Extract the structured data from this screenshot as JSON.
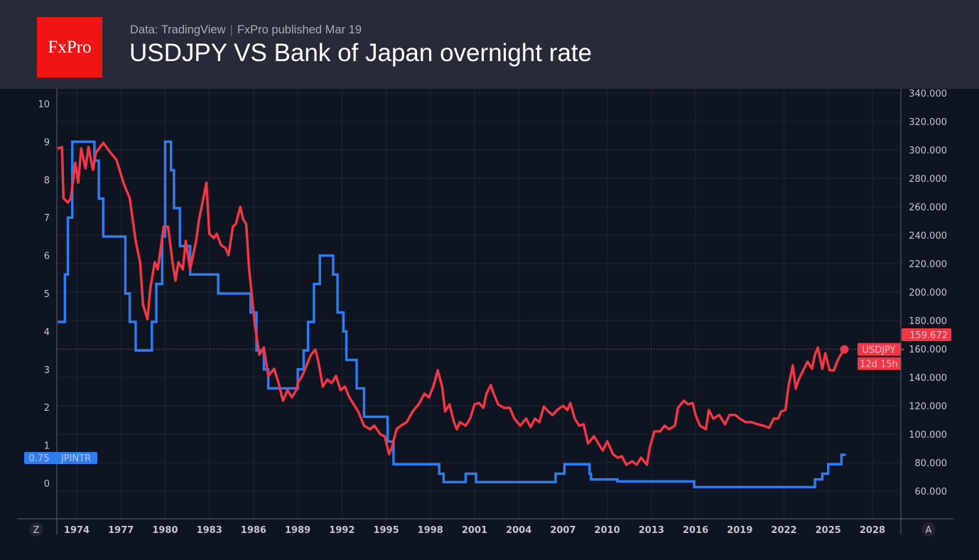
{
  "header": {
    "logo": "FxPro",
    "source": "Data: TradingView",
    "published": "FxPro published Mar 19",
    "title": "USDJPY VS Bank of Japan overnight rate"
  },
  "controls": {
    "left_button": "Z",
    "right_button": "A"
  },
  "chart_data": {
    "type": "line",
    "title": "USDJPY VS Bank of Japan overnight rate",
    "grid": true,
    "x_ticks": [
      "1974",
      "1977",
      "1980",
      "1983",
      "1986",
      "1989",
      "1992",
      "1995",
      "1998",
      "2001",
      "2004",
      "2007",
      "2010",
      "2013",
      "2016",
      "2019",
      "2022",
      "2025",
      "2028"
    ],
    "left_axis": {
      "ticks": [
        0,
        1,
        2,
        3,
        4,
        5,
        6,
        7,
        8,
        9,
        10
      ],
      "range": [
        -0.95,
        10.5
      ]
    },
    "right_axis": {
      "ticks": [
        "60.000",
        "80.000",
        "100.000",
        "120.000",
        "140.000",
        "160.000",
        "180.000",
        "200.000",
        "220.000",
        "240.000",
        "260.000",
        "280.000",
        "300.000",
        "320.000",
        "340.000"
      ],
      "range": [
        40,
        343
      ]
    },
    "series": [
      {
        "name": "USDJPY",
        "axis": "right",
        "color": "#f23645",
        "last_label": "159.672",
        "countdown": "12d 15h",
        "points": [
          [
            1972.7,
            301
          ],
          [
            1973.0,
            302
          ],
          [
            1973.1,
            266
          ],
          [
            1973.4,
            263
          ],
          [
            1973.6,
            266
          ],
          [
            1973.9,
            291
          ],
          [
            1974.1,
            277
          ],
          [
            1974.3,
            301
          ],
          [
            1974.6,
            287
          ],
          [
            1974.8,
            302
          ],
          [
            1975.1,
            286
          ],
          [
            1975.3,
            298
          ],
          [
            1975.8,
            305
          ],
          [
            1976.3,
            298
          ],
          [
            1976.7,
            293
          ],
          [
            1977.2,
            276
          ],
          [
            1977.6,
            266
          ],
          [
            1978.0,
            236
          ],
          [
            1978.3,
            221
          ],
          [
            1978.5,
            191
          ],
          [
            1978.8,
            181
          ],
          [
            1979.0,
            203
          ],
          [
            1979.3,
            221
          ],
          [
            1979.5,
            216
          ],
          [
            1979.9,
            246
          ],
          [
            1980.2,
            246
          ],
          [
            1980.5,
            221
          ],
          [
            1980.7,
            208
          ],
          [
            1980.9,
            221
          ],
          [
            1981.2,
            216
          ],
          [
            1981.4,
            236
          ],
          [
            1981.7,
            216
          ],
          [
            1982.1,
            236
          ],
          [
            1982.3,
            251
          ],
          [
            1982.5,
            261
          ],
          [
            1982.8,
            277
          ],
          [
            1983.0,
            241
          ],
          [
            1983.3,
            238
          ],
          [
            1983.5,
            241
          ],
          [
            1983.8,
            233
          ],
          [
            1984.1,
            231
          ],
          [
            1984.3,
            226
          ],
          [
            1984.6,
            246
          ],
          [
            1984.8,
            248
          ],
          [
            1985.1,
            260
          ],
          [
            1985.3,
            251
          ],
          [
            1985.5,
            248
          ],
          [
            1985.7,
            216
          ],
          [
            1986.1,
            176
          ],
          [
            1986.4,
            156
          ],
          [
            1986.7,
            161
          ],
          [
            1987.0,
            141
          ],
          [
            1987.4,
            146
          ],
          [
            1987.7,
            136
          ],
          [
            1988.0,
            123.5
          ],
          [
            1988.3,
            131
          ],
          [
            1988.6,
            126
          ],
          [
            1988.9,
            131
          ],
          [
            1989.0,
            136
          ],
          [
            1989.3,
            141
          ],
          [
            1989.6,
            148.5
          ],
          [
            1989.9,
            156
          ],
          [
            1990.2,
            159.5
          ],
          [
            1990.4,
            151
          ],
          [
            1990.7,
            133.5
          ],
          [
            1991.0,
            138.5
          ],
          [
            1991.3,
            136
          ],
          [
            1991.6,
            141
          ],
          [
            1991.9,
            131
          ],
          [
            1992.2,
            133.5
          ],
          [
            1992.5,
            126
          ],
          [
            1992.8,
            121
          ],
          [
            1993.1,
            116
          ],
          [
            1993.5,
            106
          ],
          [
            1993.9,
            103.5
          ],
          [
            1994.2,
            106
          ],
          [
            1994.6,
            100
          ],
          [
            1994.9,
            98.5
          ],
          [
            1995.2,
            86
          ],
          [
            1995.4,
            91
          ],
          [
            1995.7,
            103.5
          ],
          [
            1996.0,
            106
          ],
          [
            1996.4,
            108.5
          ],
          [
            1996.8,
            116
          ],
          [
            1997.2,
            121
          ],
          [
            1997.6,
            128.5
          ],
          [
            1997.9,
            126
          ],
          [
            1998.2,
            133.5
          ],
          [
            1998.5,
            145
          ],
          [
            1998.8,
            133.5
          ],
          [
            1999.0,
            116
          ],
          [
            1999.3,
            121
          ],
          [
            1999.6,
            108.5
          ],
          [
            1999.8,
            103.5
          ],
          [
            2000.0,
            108.5
          ],
          [
            2000.4,
            106
          ],
          [
            2000.7,
            111
          ],
          [
            2001.0,
            121
          ],
          [
            2001.3,
            122
          ],
          [
            2001.6,
            118.5
          ],
          [
            2001.8,
            128.5
          ],
          [
            2002.1,
            134.5
          ],
          [
            2002.3,
            128.5
          ],
          [
            2002.6,
            121
          ],
          [
            2003.0,
            118.5
          ],
          [
            2003.4,
            118.5
          ],
          [
            2003.7,
            111
          ],
          [
            2004.1,
            106
          ],
          [
            2004.5,
            111
          ],
          [
            2004.8,
            105
          ],
          [
            2005.1,
            111
          ],
          [
            2005.4,
            108.5
          ],
          [
            2005.7,
            119.5
          ],
          [
            2006.0,
            116
          ],
          [
            2006.3,
            113.5
          ],
          [
            2006.6,
            117
          ],
          [
            2007.0,
            120
          ],
          [
            2007.3,
            117
          ],
          [
            2007.5,
            122
          ],
          [
            2007.8,
            111
          ],
          [
            2008.1,
            106
          ],
          [
            2008.4,
            107
          ],
          [
            2008.7,
            93.5
          ],
          [
            2009.1,
            98.5
          ],
          [
            2009.4,
            93.5
          ],
          [
            2009.7,
            88.5
          ],
          [
            2010.0,
            95
          ],
          [
            2010.4,
            86
          ],
          [
            2010.7,
            83.5
          ],
          [
            2011.0,
            84.5
          ],
          [
            2011.3,
            78.5
          ],
          [
            2011.7,
            81
          ],
          [
            2012.0,
            78.5
          ],
          [
            2012.3,
            83.5
          ],
          [
            2012.7,
            78.5
          ],
          [
            2012.9,
            91
          ],
          [
            2013.2,
            102
          ],
          [
            2013.6,
            102
          ],
          [
            2013.9,
            106
          ],
          [
            2014.2,
            103.5
          ],
          [
            2014.6,
            106
          ],
          [
            2014.8,
            118.5
          ],
          [
            2015.2,
            123.5
          ],
          [
            2015.5,
            121
          ],
          [
            2015.8,
            122
          ],
          [
            2016.0,
            113.5
          ],
          [
            2016.3,
            106
          ],
          [
            2016.7,
            103.5
          ],
          [
            2016.9,
            117
          ],
          [
            2017.2,
            111
          ],
          [
            2017.6,
            113.5
          ],
          [
            2018.0,
            107
          ],
          [
            2018.3,
            113.5
          ],
          [
            2018.7,
            113.5
          ],
          [
            2019.0,
            111
          ],
          [
            2019.4,
            108.5
          ],
          [
            2019.8,
            108.5
          ],
          [
            2020.2,
            107
          ],
          [
            2020.6,
            106
          ],
          [
            2021.0,
            104.5
          ],
          [
            2021.3,
            111
          ],
          [
            2021.6,
            111
          ],
          [
            2021.8,
            116
          ],
          [
            2022.1,
            117
          ],
          [
            2022.3,
            133.5
          ],
          [
            2022.6,
            148.5
          ],
          [
            2022.8,
            132
          ],
          [
            2023.0,
            138.5
          ],
          [
            2023.4,
            147
          ],
          [
            2023.6,
            151
          ],
          [
            2023.9,
            146
          ],
          [
            2024.1,
            156
          ],
          [
            2024.3,
            161
          ],
          [
            2024.6,
            146
          ],
          [
            2024.8,
            157
          ],
          [
            2025.1,
            145
          ],
          [
            2025.4,
            145
          ],
          [
            2025.6,
            151
          ],
          [
            2025.8,
            155
          ],
          [
            2026.1,
            159.672
          ]
        ]
      },
      {
        "name": "JPINTR",
        "axis": "left",
        "color": "#2f7bf0",
        "last_label": "0.75",
        "step": true,
        "points": [
          [
            1972.7,
            4.25
          ],
          [
            1973.2,
            5.5
          ],
          [
            1973.4,
            7.0
          ],
          [
            1973.7,
            9.0
          ],
          [
            1975.2,
            8.5
          ],
          [
            1975.5,
            7.5
          ],
          [
            1975.8,
            6.5
          ],
          [
            1977.3,
            5.0
          ],
          [
            1977.6,
            4.25
          ],
          [
            1978.0,
            3.5
          ],
          [
            1979.1,
            4.25
          ],
          [
            1979.4,
            5.25
          ],
          [
            1979.8,
            6.5
          ],
          [
            1980.0,
            9.0
          ],
          [
            1980.4,
            8.25
          ],
          [
            1980.6,
            7.25
          ],
          [
            1981.0,
            6.25
          ],
          [
            1981.7,
            5.5
          ],
          [
            1983.6,
            5.0
          ],
          [
            1985.8,
            4.5
          ],
          [
            1986.2,
            3.5
          ],
          [
            1986.7,
            3.0
          ],
          [
            1987.0,
            2.5
          ],
          [
            1989.0,
            3.0
          ],
          [
            1989.4,
            3.5
          ],
          [
            1989.7,
            4.25
          ],
          [
            1990.1,
            5.25
          ],
          [
            1990.5,
            6.0
          ],
          [
            1991.4,
            5.5
          ],
          [
            1991.7,
            4.5
          ],
          [
            1992.1,
            4.0
          ],
          [
            1992.3,
            3.25
          ],
          [
            1993.0,
            2.5
          ],
          [
            1993.5,
            1.75
          ],
          [
            1995.1,
            1.1
          ],
          [
            1995.5,
            0.5
          ],
          [
            1998.6,
            0.25
          ],
          [
            1998.9,
            0.03
          ],
          [
            2000.4,
            0.25
          ],
          [
            2001.1,
            0.03
          ],
          [
            2006.5,
            0.25
          ],
          [
            2007.1,
            0.5
          ],
          [
            2008.8,
            0.25
          ],
          [
            2008.9,
            0.1
          ],
          [
            2010.7,
            0.05
          ],
          [
            2015.9,
            -0.1
          ],
          [
            2024.1,
            0.1
          ],
          [
            2024.6,
            0.25
          ],
          [
            2025.0,
            0.5
          ],
          [
            2025.9,
            0.75
          ],
          [
            2026.2,
            0.75
          ]
        ]
      }
    ]
  }
}
